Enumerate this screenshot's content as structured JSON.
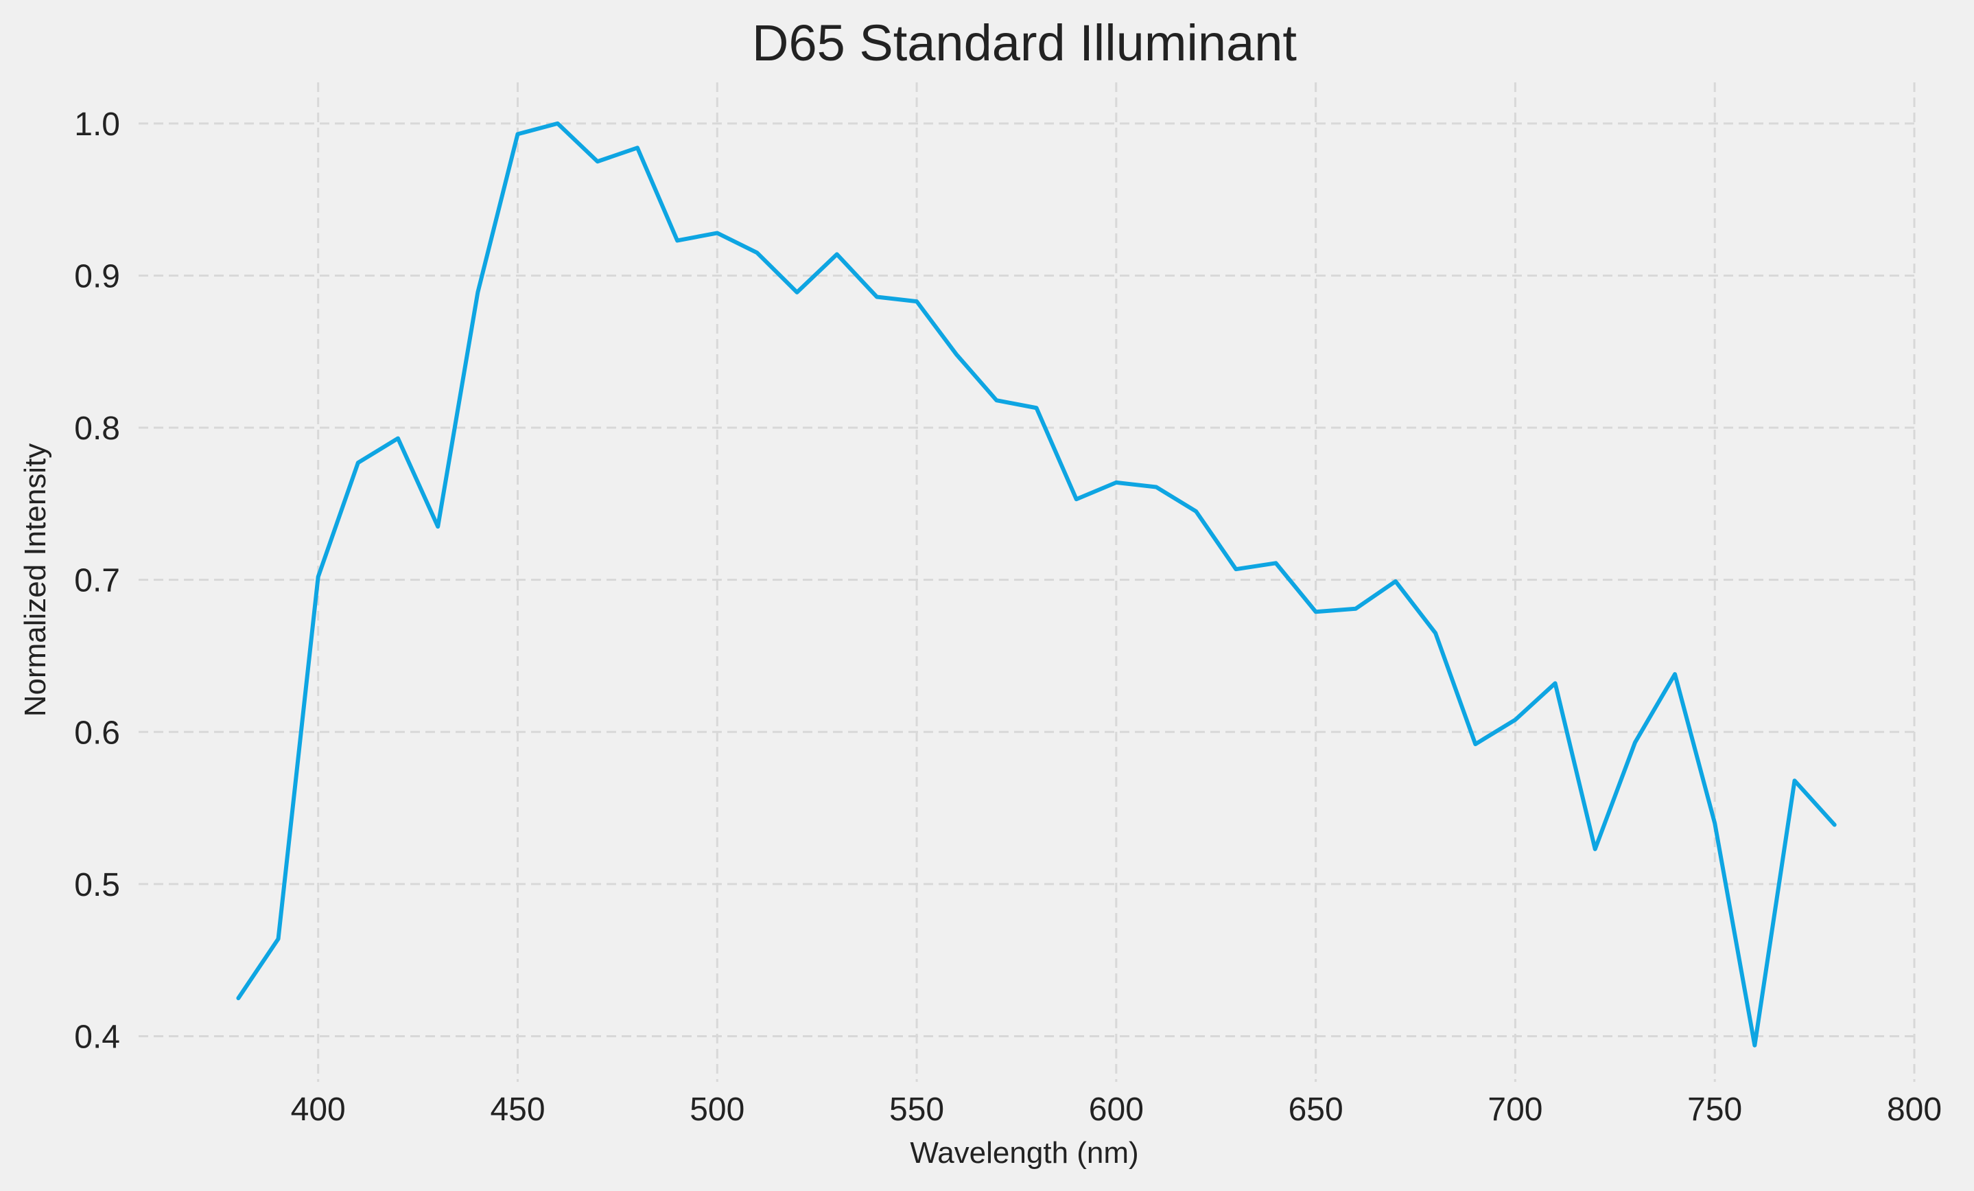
{
  "chart_data": {
    "type": "line",
    "title": "D65 Standard Illuminant",
    "xlabel": "Wavelength (nm)",
    "ylabel": "Normalized Intensity",
    "xlim": [
      355,
      800
    ],
    "ylim": [
      0.37,
      1.027
    ],
    "xticks": [
      400,
      450,
      500,
      550,
      600,
      650,
      700,
      750,
      800
    ],
    "yticks": [
      0.4,
      0.5,
      0.6,
      0.7,
      0.8,
      0.9,
      1.0
    ],
    "xtick_labels": [
      "400",
      "450",
      "500",
      "550",
      "600",
      "650",
      "700",
      "750",
      "800"
    ],
    "ytick_labels": [
      "0.4",
      "0.5",
      "0.6",
      "0.7",
      "0.8",
      "0.9",
      "1.0"
    ],
    "grid": true,
    "legend": "none",
    "colors": {
      "background": "#f0f0f0",
      "line": "#0ea5e2",
      "grid": "#d8d8d8",
      "text": "#222222"
    },
    "series": [
      {
        "x": [
          380,
          390,
          400,
          410,
          420,
          430,
          440,
          450,
          460,
          470,
          480,
          490,
          500,
          510,
          520,
          530,
          540,
          550,
          560,
          570,
          580,
          590,
          600,
          610,
          620,
          630,
          640,
          650,
          660,
          670,
          680,
          690,
          700,
          710,
          720,
          730,
          740,
          750,
          760,
          770,
          780
        ],
        "values": [
          0.425,
          0.464,
          0.702,
          0.777,
          0.793,
          0.735,
          0.889,
          0.993,
          1.0,
          0.975,
          0.984,
          0.923,
          0.928,
          0.915,
          0.889,
          0.914,
          0.886,
          0.883,
          0.848,
          0.818,
          0.813,
          0.753,
          0.764,
          0.761,
          0.745,
          0.707,
          0.711,
          0.679,
          0.681,
          0.699,
          0.665,
          0.592,
          0.608,
          0.632,
          0.523,
          0.593,
          0.638,
          0.54,
          0.394,
          0.568,
          0.539
        ]
      }
    ]
  }
}
